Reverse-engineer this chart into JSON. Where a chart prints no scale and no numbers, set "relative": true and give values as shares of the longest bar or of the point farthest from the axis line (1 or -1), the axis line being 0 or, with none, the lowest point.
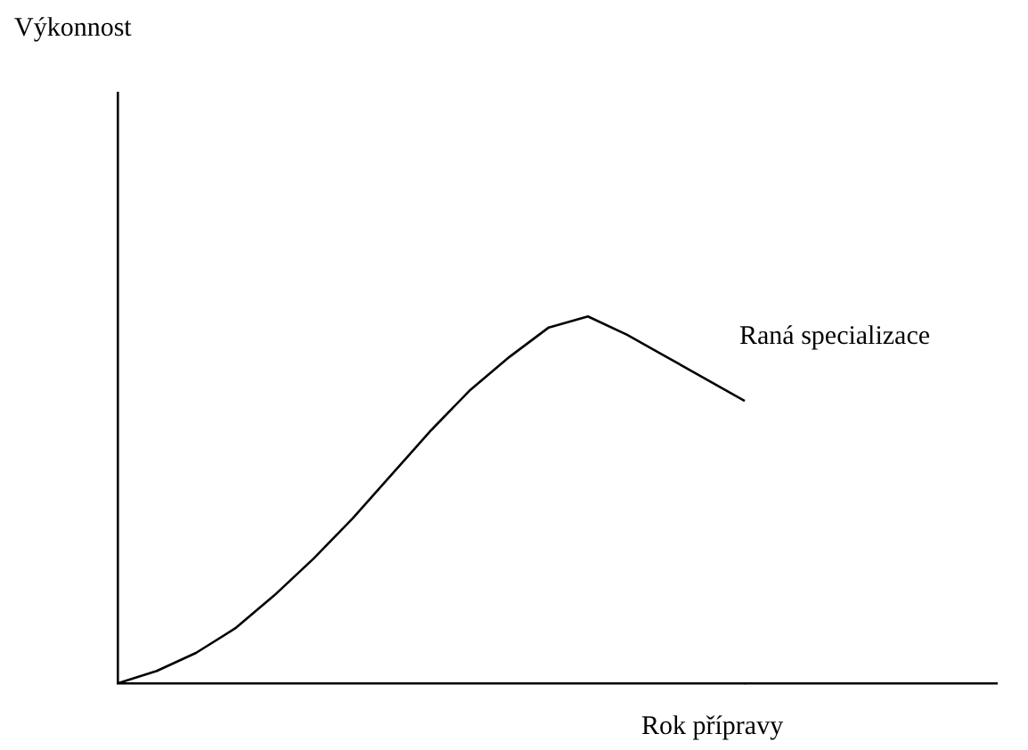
{
  "chart_data": {
    "type": "line",
    "relative": true,
    "xlabel": "Rok přípravy",
    "annotations": [
      "Výkonnost"
    ],
    "categories": [
      null,
      null,
      null,
      null,
      null,
      null,
      null,
      null,
      null,
      null,
      null,
      null,
      null,
      null,
      null,
      null,
      null
    ],
    "series": [
      {
        "name": "Raná specializace",
        "color": "#000000",
        "values": [
          0,
          0.034,
          0.083,
          0.15,
          0.24,
          0.34,
          0.45,
          0.57,
          0.69,
          0.8,
          0.89,
          0.97,
          1,
          0.95,
          0.89,
          0.83,
          0.77
        ]
      }
    ],
    "marker": "none",
    "grid": false,
    "legend": false
  }
}
